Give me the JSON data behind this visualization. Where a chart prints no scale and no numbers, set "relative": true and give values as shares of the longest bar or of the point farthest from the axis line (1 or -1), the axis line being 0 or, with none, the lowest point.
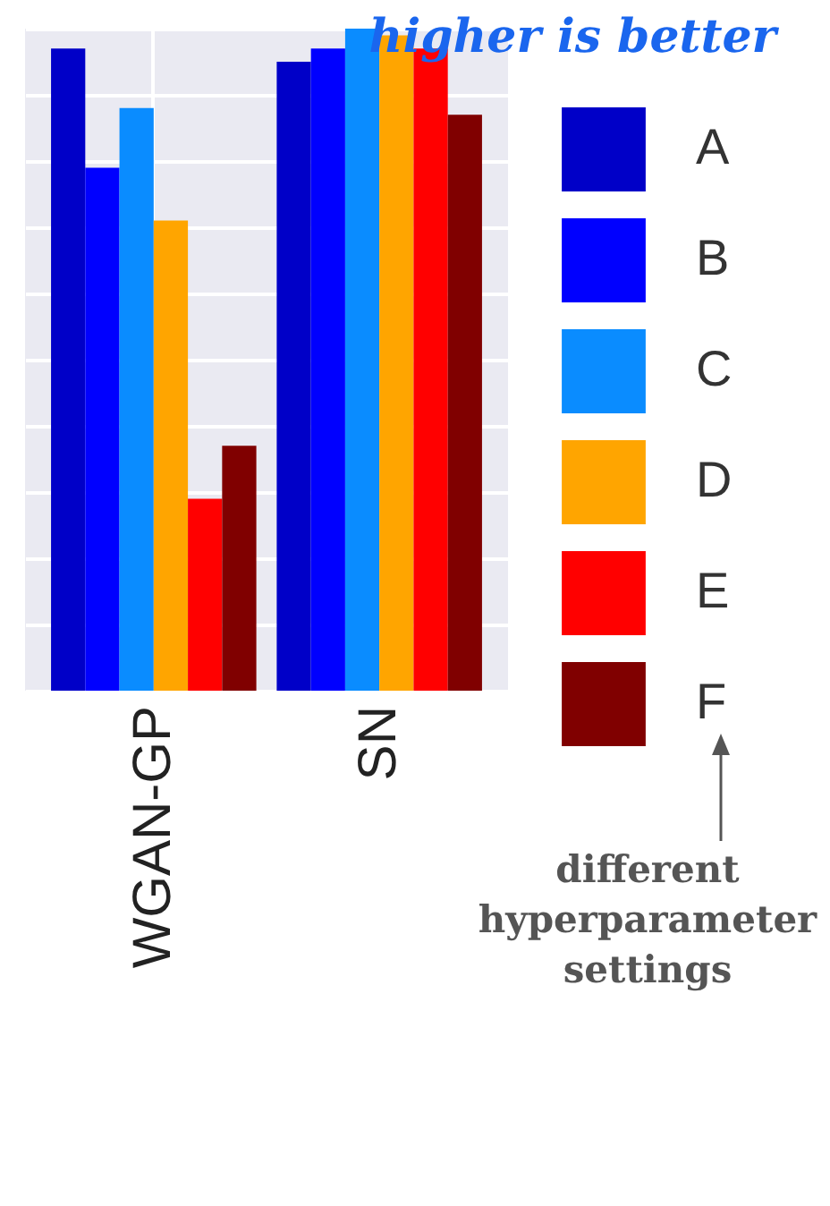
{
  "chart_data": {
    "type": "bar",
    "title": "higher is better",
    "relative": true,
    "grid": true,
    "legend": "right",
    "categories": [
      "WGAN-GP",
      "SN"
    ],
    "series": [
      {
        "name": "A",
        "color": "#0000c8",
        "values": [
          0.97,
          0.95
        ]
      },
      {
        "name": "B",
        "color": "#0000ff",
        "values": [
          0.79,
          0.97
        ]
      },
      {
        "name": "C",
        "color": "#0a8cff",
        "values": [
          0.88,
          1
        ]
      },
      {
        "name": "D",
        "color": "#ffa500",
        "values": [
          0.71,
          0.99
        ]
      },
      {
        "name": "E",
        "color": "#ff0000",
        "values": [
          0.29,
          0.97
        ]
      },
      {
        "name": "F",
        "color": "#800000",
        "values": [
          0.37,
          0.87
        ]
      }
    ],
    "annotations": [
      "different hyperparameter settings"
    ]
  }
}
